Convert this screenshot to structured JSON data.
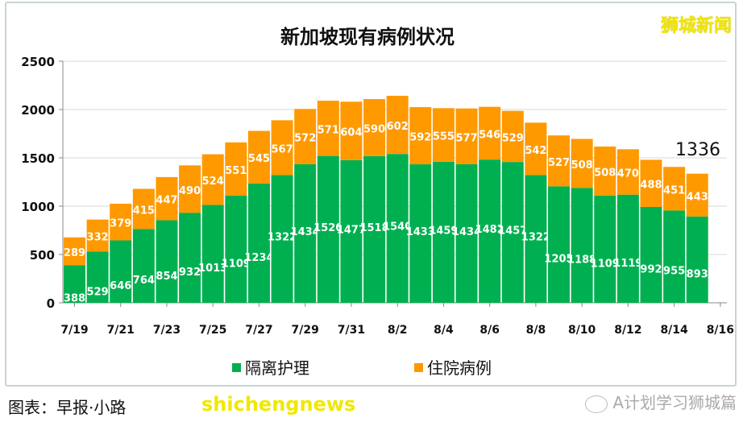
{
  "chart_data": {
    "type": "bar",
    "stacked": true,
    "title": "新加坡现有病例状况",
    "categories": [
      "7/19",
      "7/20",
      "7/21",
      "7/22",
      "7/23",
      "7/24",
      "7/25",
      "7/26",
      "7/27",
      "7/28",
      "7/29",
      "7/30",
      "7/31",
      "8/1",
      "8/2",
      "8/3",
      "8/4",
      "8/5",
      "8/6",
      "8/7",
      "8/8",
      "8/9",
      "8/10",
      "8/11",
      "8/12",
      "8/13",
      "8/14",
      "8/15"
    ],
    "x_tick_labels": [
      "7/19",
      "7/21",
      "7/23",
      "7/25",
      "7/27",
      "7/29",
      "7/31",
      "8/2",
      "8/4",
      "8/6",
      "8/8",
      "8/10",
      "8/12",
      "8/14",
      "8/16"
    ],
    "series": [
      {
        "name": "隔离护理",
        "color": "#00b050",
        "values": [
          388,
          529,
          646,
          764,
          854,
          932,
          1013,
          1109,
          1234,
          1322,
          1434,
          1520,
          1477,
          1518,
          1540,
          1433,
          1459,
          1434,
          1482,
          1457,
          1322,
          1205,
          1188,
          1109,
          1119,
          992,
          955,
          893
        ]
      },
      {
        "name": "住院病例",
        "color": "#ff9900",
        "values": [
          289,
          332,
          379,
          415,
          447,
          490,
          524,
          551,
          545,
          567,
          572,
          571,
          604,
          590,
          602,
          592,
          555,
          577,
          546,
          529,
          542,
          527,
          508,
          508,
          470,
          488,
          451,
          443
        ]
      }
    ],
    "y_ticks": [
      0,
      500,
      1000,
      1500,
      2000,
      2500
    ],
    "ylim": [
      0,
      2500
    ],
    "grid": true,
    "legend_position": "bottom",
    "annotation": "1336"
  },
  "watermarks": {
    "top_right": "狮城新闻",
    "caption": "图表：早报·小路",
    "caption_overlay": "shichengnews",
    "wechat": "A计划学习狮城篇"
  }
}
